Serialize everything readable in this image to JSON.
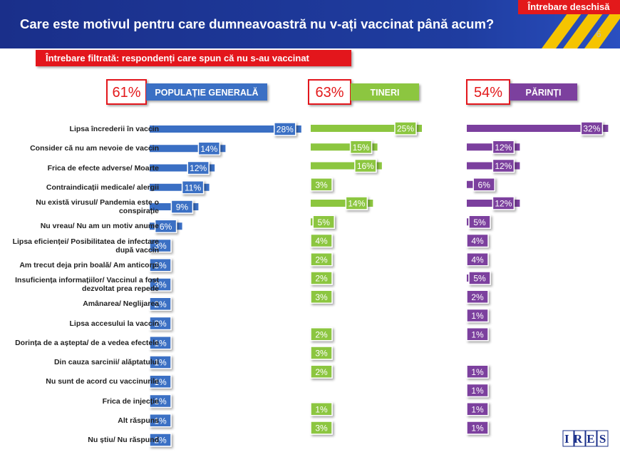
{
  "title": "Care este motivul pentru care dumneavoastră nu v-ați vaccinat până acum?",
  "tag": "Întrebare deschisă",
  "page_number": "6",
  "filter_note": "Întrebare filtrată: respondenți care spun că nu s-au vaccinat",
  "logo": "IRES",
  "chart_data": [
    {
      "type": "bar",
      "name": "POPULAȚIE GENERALĂ",
      "total": {
        "value": 61,
        "label": "61%"
      },
      "color": "#3a6fc4",
      "categories": [
        "Lipsa încrederii în vaccin",
        "Consider că nu am nevoie de vaccin",
        "Frica de efecte adverse/ Moarte",
        "Contraindicații medicale/ alergii",
        "Nu există virusul/ Pandemia este o conspirație",
        "Nu vreau/ Nu am un motiv anume",
        "Lipsa eficienței/ Posibilitatea de infectare după vaccin",
        "Am trecut deja prin boală/ Am anticorpi",
        "Insuficiența informațiilor/ Vaccinul a fost dezvoltat prea repede",
        "Amânarea/ Neglijarea",
        "Lipsa accesului la vaccin",
        "Dorința de a aștepta/ de a vedea efectele",
        "Din cauza sarcinii/ alăptatului",
        "Nu sunt de acord cu vaccinurile",
        "Frica de injecție",
        "Alt răspuns",
        "Nu știu/ Nu răspund"
      ],
      "values": [
        28,
        14,
        12,
        11,
        9,
        6,
        3,
        3,
        3,
        2,
        2,
        1,
        1,
        1,
        1,
        1,
        2
      ],
      "value_labels": [
        "28%",
        "14%",
        "12%",
        "11%",
        "9%",
        "6%",
        "3%",
        "3%",
        "3%",
        "2%",
        "2%",
        "1%",
        "1%",
        "1%",
        "1%",
        "1%",
        "2%"
      ]
    },
    {
      "type": "bar",
      "name": "TINERI",
      "total": {
        "value": 63,
        "label": "63%"
      },
      "color": "#8cc63f",
      "values": [
        25,
        15,
        16,
        3,
        14,
        5,
        4,
        2,
        2,
        3,
        null,
        2,
        3,
        2,
        null,
        1,
        3
      ],
      "value_labels": [
        "25%",
        "15%",
        "16%",
        "3%",
        "14%",
        "5%",
        "4%",
        "2%",
        "2%",
        "3%",
        null,
        "2%",
        "3%",
        "2%",
        null,
        "1%",
        "3%"
      ]
    },
    {
      "type": "bar",
      "name": "PĂRINȚI",
      "total": {
        "value": 54,
        "label": "54%"
      },
      "color": "#7b3f9e",
      "values": [
        32,
        12,
        12,
        6,
        12,
        5,
        4,
        4,
        5,
        2,
        1,
        1,
        null,
        1,
        1,
        1,
        1
      ],
      "value_labels": [
        "32%",
        "12%",
        "12%",
        "6%",
        "12%",
        "5%",
        "4%",
        "4%",
        "5%",
        "2%",
        "1%",
        "1%",
        null,
        "1%",
        "1%",
        "1%",
        "1%"
      ]
    }
  ]
}
